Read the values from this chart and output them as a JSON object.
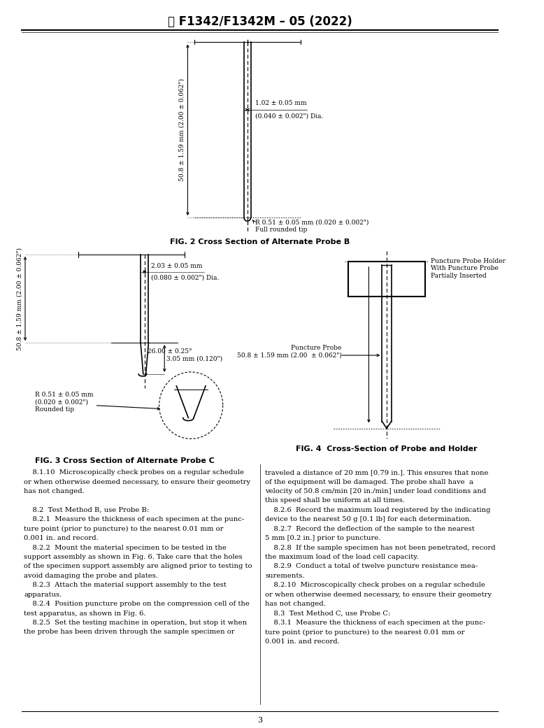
{
  "title": "F1342/F1342M – 05 (2022)",
  "page_num": "3",
  "fig2_caption": "FIG. 2 Cross Section of Alternate Probe B",
  "fig3_caption": "FIG. 3 Cross Section of Alternate Probe C",
  "fig4_caption": "FIG. 4  Cross-Section of Probe and Holder",
  "left_col_lines": [
    "    8.1.10  Microscopically check probes on a regular schedule",
    "or when otherwise deemed necessary, to ensure their geometry",
    "has not changed.",
    "",
    "    8.2  Test Method B, use Probe B:",
    "    8.2.1  Measure the thickness of each specimen at the punc-",
    "ture point (prior to puncture) to the nearest 0.01 mm or",
    "0.001 in. and record.",
    "    8.2.2  Mount the material specimen to be tested in the",
    "support assembly as shown in Fig. 6. Take care that the holes",
    "of the specimen support assembly are aligned prior to testing to",
    "avoid damaging the probe and plates.",
    "    8.2.3  Attach the material support assembly to the test",
    "apparatus.",
    "    8.2.4  Position puncture probe on the compression cell of the",
    "test apparatus, as shown in Fig. 6.",
    "    8.2.5  Set the testing machine in operation, but stop it when",
    "the probe has been driven through the sample specimen or"
  ],
  "right_col_lines": [
    "traveled a distance of 20 mm [0.79 in.]. This ensures that none",
    "of the equipment will be damaged. The probe shall have  a",
    "velocity of 50.8 cm/min [20 in./min] under load conditions and",
    "this speed shall be uniform at all times.",
    "    8.2.6  Record the maximum load registered by the indicating",
    "device to the nearest 50 g [0.1 lb] for each determination.",
    "    8.2.7  Record the deflection of the sample to the nearest",
    "5 mm [0.2 in.] prior to puncture.",
    "    8.2.8  If the sample specimen has not been penetrated, record",
    "the maximum load of the load cell capacity.",
    "    8.2.9  Conduct a total of twelve puncture resistance mea-",
    "surements.",
    "    8.2.10  Microscopically check probes on a regular schedule",
    "or when otherwise deemed necessary, to ensure their geometry",
    "has not changed.",
    "    8.3  Test Method C, use Probe C:",
    "    8.3.1  Measure the thickness of each specimen at the punc-",
    "ture point (prior to puncture) to the nearest 0.01 mm or",
    "0.001 in. and record."
  ],
  "background_color": "#ffffff"
}
